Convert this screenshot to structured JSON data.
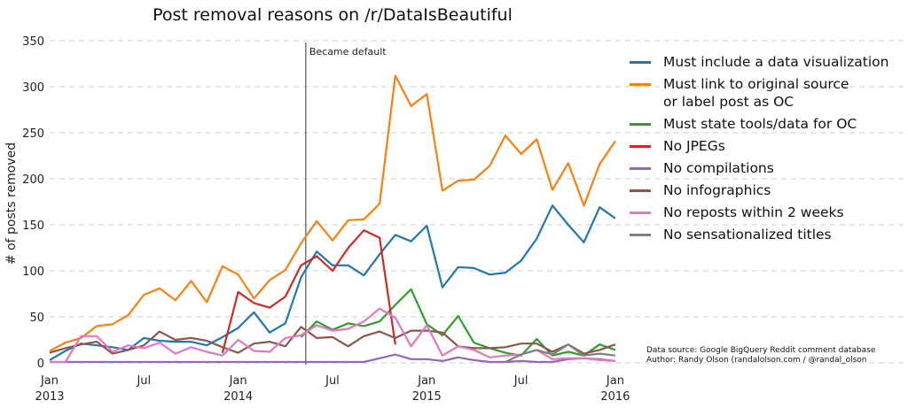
{
  "chart_data": {
    "type": "line",
    "title": "Post removal reasons on /r/DataIsBeautiful",
    "xlabel": "",
    "ylabel": "# of posts removed",
    "ylim": [
      0,
      350
    ],
    "yticks": [
      0,
      50,
      100,
      150,
      200,
      250,
      300,
      350
    ],
    "xticks": [
      {
        "month": 0,
        "label": "Jan",
        "sub": "2013"
      },
      {
        "month": 6,
        "label": "Jul",
        "sub": ""
      },
      {
        "month": 12,
        "label": "Jan",
        "sub": "2014"
      },
      {
        "month": 18,
        "label": "Jul",
        "sub": ""
      },
      {
        "month": 24,
        "label": "Jan",
        "sub": "2015"
      },
      {
        "month": 30,
        "label": "Jul",
        "sub": ""
      },
      {
        "month": 36,
        "label": "Jan",
        "sub": "2016"
      }
    ],
    "x_start": "Jan 2013",
    "x_end": "Jan 2016",
    "grid": "horizontal dashed",
    "legend_position": "right",
    "annotations": [
      {
        "month": 16.3,
        "text": "Became default",
        "type": "vertical-line"
      }
    ],
    "series": [
      {
        "name": "Must include a data visualization",
        "color": "#1f77b4",
        "start": 0,
        "values": [
          3,
          13,
          21,
          19,
          17,
          14,
          27,
          24,
          23,
          23,
          19,
          28,
          38,
          55,
          33,
          43,
          93,
          121,
          106,
          106,
          95,
          118,
          139,
          132,
          149,
          82,
          104,
          103,
          96,
          98,
          111,
          135,
          171,
          150,
          131,
          169,
          157
        ]
      },
      {
        "name": "Must link to original source\nor label post as OC",
        "color": "#ff7f0e",
        "start": 0,
        "values": [
          13,
          22,
          27,
          40,
          42,
          52,
          74,
          81,
          68,
          89,
          66,
          105,
          96,
          70,
          90,
          101,
          130,
          154,
          133,
          155,
          156,
          173,
          312,
          279,
          292,
          187,
          198,
          199,
          214,
          247,
          227,
          243,
          188,
          217,
          171,
          216,
          241
        ]
      },
      {
        "name": "Must state tools/data for OC",
        "color": "#2ca02c",
        "start": 16,
        "values": [
          28,
          45,
          36,
          43,
          40,
          45,
          63,
          80,
          42,
          30,
          51,
          22,
          16,
          11,
          8,
          26,
          8,
          12,
          8,
          20,
          14
        ]
      },
      {
        "name": "No JPEGs",
        "color": "#d62728",
        "start": 11,
        "values": [
          11,
          77,
          65,
          60,
          72,
          106,
          116,
          100,
          125,
          144,
          136,
          20
        ]
      },
      {
        "name": "No compilations",
        "color": "#9467bd",
        "start": 0,
        "values": [
          1,
          1,
          1,
          1,
          1,
          1,
          1,
          1,
          1,
          1,
          1,
          1,
          1,
          1,
          1,
          1,
          1,
          1,
          1,
          1,
          1,
          5,
          9,
          4,
          4,
          2,
          6,
          3,
          1,
          1,
          2,
          1,
          1,
          4,
          5,
          4,
          2
        ]
      },
      {
        "name": "No infographics",
        "color": "#8c564b",
        "start": 0,
        "values": [
          11,
          16,
          20,
          23,
          10,
          14,
          19,
          34,
          25,
          27,
          24,
          17,
          11,
          21,
          23,
          18,
          39,
          27,
          28,
          18,
          29,
          34,
          27,
          35,
          35,
          33,
          18,
          16,
          16,
          17,
          21,
          21,
          12,
          20,
          10,
          14,
          20
        ]
      },
      {
        "name": "No reposts within 2 weeks",
        "color": "#e377c2",
        "start": 0,
        "values": [
          1,
          1,
          29,
          29,
          12,
          19,
          16,
          22,
          10,
          17,
          12,
          8,
          25,
          13,
          12,
          27,
          30,
          41,
          35,
          37,
          45,
          59,
          49,
          18,
          41,
          8,
          18,
          14,
          6,
          8,
          9,
          14,
          4,
          5,
          5,
          3,
          2
        ]
      },
      {
        "name": "No sensationalized titles",
        "color": "#7f7f7f",
        "start": 29,
        "values": [
          1,
          9,
          14,
          9,
          20,
          8,
          10,
          8
        ]
      }
    ]
  },
  "credits": {
    "line1": "Data source: Google BigQuery Reddit comment database",
    "line2": "Author: Randy Olson (randalolson.com / @randal_olson"
  }
}
